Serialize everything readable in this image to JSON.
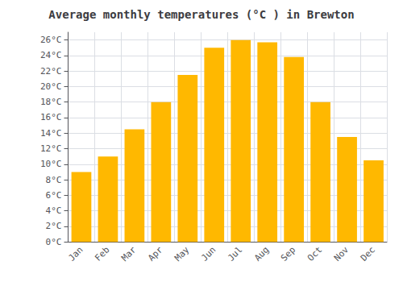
{
  "chart_data": {
    "type": "bar",
    "title": "Average monthly temperatures (°C ) in Brewton",
    "categories": [
      "Jan",
      "Feb",
      "Mar",
      "Apr",
      "May",
      "Jun",
      "Jul",
      "Aug",
      "Sep",
      "Oct",
      "Nov",
      "Dec"
    ],
    "values": [
      9.0,
      11.0,
      14.5,
      18.0,
      21.5,
      25.0,
      26.0,
      25.7,
      23.8,
      18.0,
      13.5,
      10.5
    ],
    "color": "#FFB800",
    "ylim": [
      0,
      27
    ],
    "yticks": [
      {
        "value": 0,
        "label": "0°C"
      },
      {
        "value": 2,
        "label": "2°C"
      },
      {
        "value": 4,
        "label": "4°C"
      },
      {
        "value": 6,
        "label": "6°C"
      },
      {
        "value": 8,
        "label": "8°C"
      },
      {
        "value": 10,
        "label": "10°C"
      },
      {
        "value": 12,
        "label": "12°C"
      },
      {
        "value": 14,
        "label": "14°C"
      },
      {
        "value": 16,
        "label": "16°C"
      },
      {
        "value": 18,
        "label": "18°C"
      },
      {
        "value": 20,
        "label": "20°C"
      },
      {
        "value": 22,
        "label": "22°C"
      },
      {
        "value": 24,
        "label": "24°C"
      },
      {
        "value": 26,
        "label": "26°C"
      }
    ],
    "grid": true
  }
}
